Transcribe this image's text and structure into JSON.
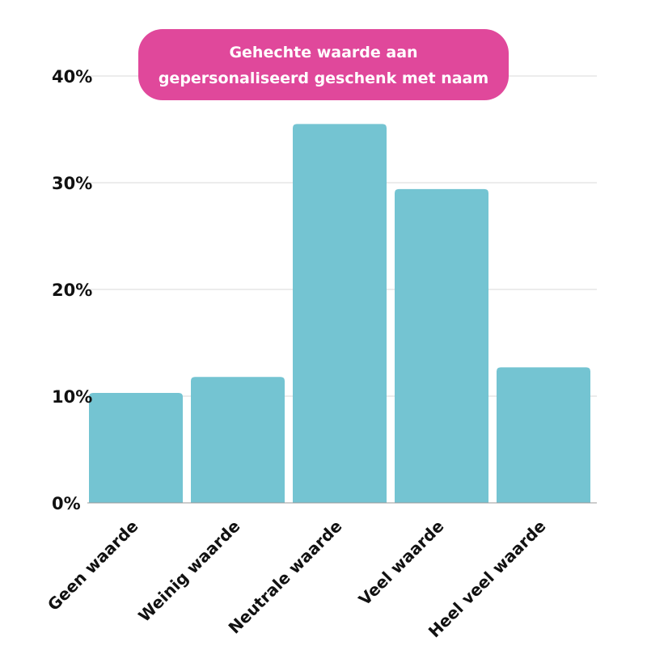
{
  "chart_data": {
    "type": "bar",
    "title": "Gehechte waarde aan gepersonaliseerd geschenk met naam",
    "title_lines": [
      "Gehechte waarde aan",
      "gepersonaliseerd geschenk met naam"
    ],
    "xlabel": "",
    "ylabel": "",
    "categories": [
      "Geen waarde",
      "Weinig waarde",
      "Neutrale waarde",
      "Veel waarde",
      "Heel veel waarde"
    ],
    "values": [
      10.3,
      11.8,
      35.5,
      29.4,
      12.7
    ],
    "ylim": [
      0,
      40
    ],
    "yticks": [
      0,
      10,
      20,
      30,
      40
    ],
    "ytick_labels": [
      "0%",
      "10%",
      "20%",
      "30%",
      "40%"
    ],
    "grid": true,
    "legend": "none",
    "colors": {
      "bar": "#74c4d2",
      "title_bg": "#e0489b",
      "title_text": "#ffffff",
      "grid": "#d9d9d9",
      "axis": "#999999",
      "text": "#111111"
    }
  }
}
